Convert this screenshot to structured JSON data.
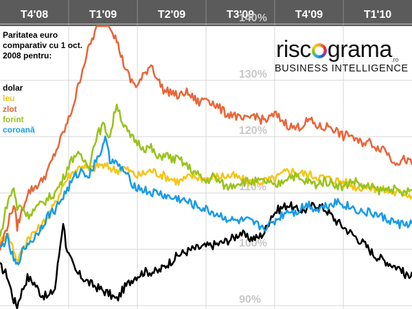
{
  "chart_data": {
    "type": "line",
    "title": "Paritatea euro comparativ cu 1 oct. 2008 pentru:",
    "x_ticks": [
      "T4'08",
      "T1'09",
      "T2'09",
      "T3'09",
      "T4'09",
      "T1'10"
    ],
    "y_ticks": [
      "90%",
      "100%",
      "110%",
      "120%",
      "130%",
      "140%"
    ],
    "ylim": [
      90,
      145
    ],
    "xlim": [
      0,
      600
    ],
    "grid": true,
    "legend_position": "top-left",
    "series": [
      {
        "name": "dolar",
        "color": "#000000",
        "points": [
          [
            0,
            97
          ],
          [
            10,
            95.5
          ],
          [
            20,
            91
          ],
          [
            25,
            90
          ],
          [
            30,
            92
          ],
          [
            40,
            95
          ],
          [
            50,
            94
          ],
          [
            60,
            92
          ],
          [
            70,
            91.5
          ],
          [
            80,
            93
          ],
          [
            88,
            101
          ],
          [
            92,
            105
          ],
          [
            96,
            101
          ],
          [
            100,
            99
          ],
          [
            110,
            96
          ],
          [
            120,
            95
          ],
          [
            130,
            94
          ],
          [
            145,
            93
          ],
          [
            160,
            92
          ],
          [
            170,
            91
          ],
          [
            180,
            93
          ],
          [
            195,
            95
          ],
          [
            210,
            96
          ],
          [
            230,
            96
          ],
          [
            245,
            97.5
          ],
          [
            260,
            99
          ],
          [
            280,
            100
          ],
          [
            300,
            100.5
          ],
          [
            320,
            101
          ],
          [
            340,
            102
          ],
          [
            350,
            103
          ],
          [
            360,
            102
          ],
          [
            375,
            102
          ],
          [
            385,
            103
          ],
          [
            395,
            106
          ],
          [
            405,
            107
          ],
          [
            420,
            108
          ],
          [
            430,
            107
          ],
          [
            445,
            107
          ],
          [
            460,
            108
          ],
          [
            475,
            107
          ],
          [
            490,
            105
          ],
          [
            510,
            103
          ],
          [
            530,
            101
          ],
          [
            545,
            99
          ],
          [
            560,
            98
          ],
          [
            575,
            97
          ],
          [
            585,
            96.5
          ],
          [
            590,
            95
          ],
          [
            600,
            96
          ]
        ]
      },
      {
        "name": "leu",
        "color": "#f5c518",
        "points": [
          [
            0,
            101
          ],
          [
            10,
            103
          ],
          [
            20,
            100
          ],
          [
            25,
            98
          ],
          [
            30,
            99
          ],
          [
            40,
            102
          ],
          [
            50,
            103
          ],
          [
            60,
            104
          ],
          [
            70,
            106
          ],
          [
            80,
            108
          ],
          [
            90,
            111
          ],
          [
            100,
            113
          ],
          [
            110,
            114
          ],
          [
            120,
            115
          ],
          [
            130,
            114
          ],
          [
            145,
            115
          ],
          [
            160,
            114.5
          ],
          [
            170,
            114
          ],
          [
            180,
            114.5
          ],
          [
            200,
            113
          ],
          [
            220,
            114
          ],
          [
            240,
            113
          ],
          [
            260,
            112
          ],
          [
            280,
            113
          ],
          [
            300,
            112.5
          ],
          [
            320,
            113
          ],
          [
            340,
            113
          ],
          [
            360,
            112
          ],
          [
            380,
            112
          ],
          [
            400,
            112.5
          ],
          [
            420,
            114
          ],
          [
            440,
            113.5
          ],
          [
            460,
            113
          ],
          [
            480,
            112.5
          ],
          [
            500,
            112
          ],
          [
            520,
            111
          ],
          [
            540,
            111
          ],
          [
            560,
            110.5
          ],
          [
            575,
            110
          ],
          [
            590,
            110
          ],
          [
            600,
            109.5
          ]
        ]
      },
      {
        "name": "zlot",
        "color": "#e8663a",
        "points": [
          [
            0,
            100
          ],
          [
            10,
            104
          ],
          [
            20,
            108
          ],
          [
            25,
            104
          ],
          [
            30,
            106
          ],
          [
            40,
            110
          ],
          [
            50,
            111
          ],
          [
            60,
            112
          ],
          [
            70,
            114
          ],
          [
            80,
            117
          ],
          [
            90,
            120
          ],
          [
            100,
            123
          ],
          [
            110,
            127
          ],
          [
            120,
            132
          ],
          [
            130,
            136
          ],
          [
            140,
            139
          ],
          [
            150,
            142
          ],
          [
            155,
            145
          ],
          [
            160,
            140
          ],
          [
            170,
            137
          ],
          [
            180,
            133
          ],
          [
            190,
            130
          ],
          [
            200,
            129
          ],
          [
            210,
            131
          ],
          [
            220,
            133
          ],
          [
            230,
            130
          ],
          [
            240,
            128
          ],
          [
            250,
            128
          ],
          [
            260,
            127
          ],
          [
            270,
            128
          ],
          [
            280,
            127
          ],
          [
            290,
            126
          ],
          [
            300,
            127
          ],
          [
            310,
            126
          ],
          [
            320,
            125
          ],
          [
            330,
            124
          ],
          [
            340,
            124
          ],
          [
            350,
            123
          ],
          [
            360,
            123
          ],
          [
            370,
            124
          ],
          [
            380,
            123
          ],
          [
            390,
            123
          ],
          [
            400,
            124
          ],
          [
            410,
            123
          ],
          [
            420,
            122
          ],
          [
            430,
            121.5
          ],
          [
            440,
            122
          ],
          [
            450,
            123
          ],
          [
            460,
            122
          ],
          [
            470,
            121.5
          ],
          [
            480,
            122
          ],
          [
            490,
            121
          ],
          [
            500,
            120
          ],
          [
            510,
            120.5
          ],
          [
            520,
            119
          ],
          [
            530,
            119
          ],
          [
            540,
            119
          ],
          [
            550,
            118
          ],
          [
            560,
            118
          ],
          [
            570,
            116
          ],
          [
            580,
            115.5
          ],
          [
            590,
            116
          ],
          [
            600,
            115
          ]
        ]
      },
      {
        "name": "forint",
        "color": "#99c31c",
        "points": [
          [
            0,
            102
          ],
          [
            10,
            108
          ],
          [
            20,
            111
          ],
          [
            25,
            107
          ],
          [
            30,
            108
          ],
          [
            40,
            106
          ],
          [
            50,
            107
          ],
          [
            60,
            108
          ],
          [
            70,
            109
          ],
          [
            80,
            110
          ],
          [
            90,
            112
          ],
          [
            100,
            115
          ],
          [
            110,
            117
          ],
          [
            120,
            116
          ],
          [
            130,
            115
          ],
          [
            140,
            120
          ],
          [
            150,
            122
          ],
          [
            160,
            120
          ],
          [
            170,
            126
          ],
          [
            180,
            122
          ],
          [
            190,
            120
          ],
          [
            200,
            119
          ],
          [
            210,
            118
          ],
          [
            220,
            118
          ],
          [
            230,
            116
          ],
          [
            240,
            117
          ],
          [
            250,
            116
          ],
          [
            260,
            116
          ],
          [
            270,
            115
          ],
          [
            280,
            114
          ],
          [
            290,
            113
          ],
          [
            300,
            112
          ],
          [
            310,
            113
          ],
          [
            320,
            112
          ],
          [
            330,
            111
          ],
          [
            340,
            111.5
          ],
          [
            350,
            112
          ],
          [
            360,
            112
          ],
          [
            370,
            112
          ],
          [
            380,
            112
          ],
          [
            390,
            112
          ],
          [
            400,
            111
          ],
          [
            410,
            112
          ],
          [
            420,
            113
          ],
          [
            430,
            113
          ],
          [
            440,
            112
          ],
          [
            450,
            112
          ],
          [
            460,
            111.5
          ],
          [
            470,
            112
          ],
          [
            480,
            112
          ],
          [
            490,
            111.5
          ],
          [
            500,
            111
          ],
          [
            510,
            112
          ],
          [
            520,
            112
          ],
          [
            530,
            111
          ],
          [
            540,
            111
          ],
          [
            550,
            110.5
          ],
          [
            560,
            110.5
          ],
          [
            570,
            111
          ],
          [
            580,
            110
          ],
          [
            590,
            110
          ],
          [
            600,
            110.5
          ]
        ]
      },
      {
        "name": "coroană",
        "color": "#1a9be6",
        "points": [
          [
            0,
            100
          ],
          [
            10,
            102
          ],
          [
            20,
            98
          ],
          [
            25,
            97
          ],
          [
            30,
            99
          ],
          [
            40,
            101
          ],
          [
            50,
            102
          ],
          [
            60,
            104
          ],
          [
            70,
            106
          ],
          [
            80,
            107
          ],
          [
            90,
            109
          ],
          [
            100,
            111
          ],
          [
            110,
            113
          ],
          [
            120,
            114
          ],
          [
            130,
            113
          ],
          [
            140,
            116
          ],
          [
            150,
            118
          ],
          [
            155,
            120
          ],
          [
            160,
            116
          ],
          [
            170,
            115
          ],
          [
            180,
            114
          ],
          [
            190,
            112
          ],
          [
            200,
            111
          ],
          [
            210,
            110.5
          ],
          [
            220,
            110
          ],
          [
            230,
            110
          ],
          [
            240,
            109.5
          ],
          [
            250,
            109
          ],
          [
            260,
            109
          ],
          [
            270,
            108.5
          ],
          [
            280,
            108
          ],
          [
            290,
            107.5
          ],
          [
            300,
            107
          ],
          [
            310,
            106.5
          ],
          [
            320,
            106
          ],
          [
            330,
            105.5
          ],
          [
            340,
            105
          ],
          [
            350,
            105
          ],
          [
            360,
            105
          ],
          [
            370,
            104.5
          ],
          [
            380,
            104
          ],
          [
            390,
            104
          ],
          [
            400,
            105
          ],
          [
            410,
            106
          ],
          [
            420,
            107
          ],
          [
            430,
            106.5
          ],
          [
            440,
            107.5
          ],
          [
            450,
            108
          ],
          [
            460,
            107
          ],
          [
            470,
            107.5
          ],
          [
            480,
            108
          ],
          [
            490,
            108.5
          ],
          [
            500,
            108
          ],
          [
            510,
            107.5
          ],
          [
            520,
            107
          ],
          [
            530,
            106.5
          ],
          [
            540,
            106.5
          ],
          [
            550,
            106
          ],
          [
            560,
            105.5
          ],
          [
            570,
            105
          ],
          [
            580,
            104.5
          ],
          [
            590,
            104.5
          ],
          [
            600,
            104.5
          ]
        ]
      }
    ]
  },
  "legend_title": "Paritatea euro comparativ cu 1 oct. 2008 pentru:",
  "logo": {
    "wordmark_left": "risc",
    "wordmark_right": "grama",
    "domain": ".ro",
    "subtitle": "BUSINESS INTELLIGENCE"
  },
  "colors": {
    "header": "#5b5b5b",
    "grid": "#c8c8c8"
  }
}
